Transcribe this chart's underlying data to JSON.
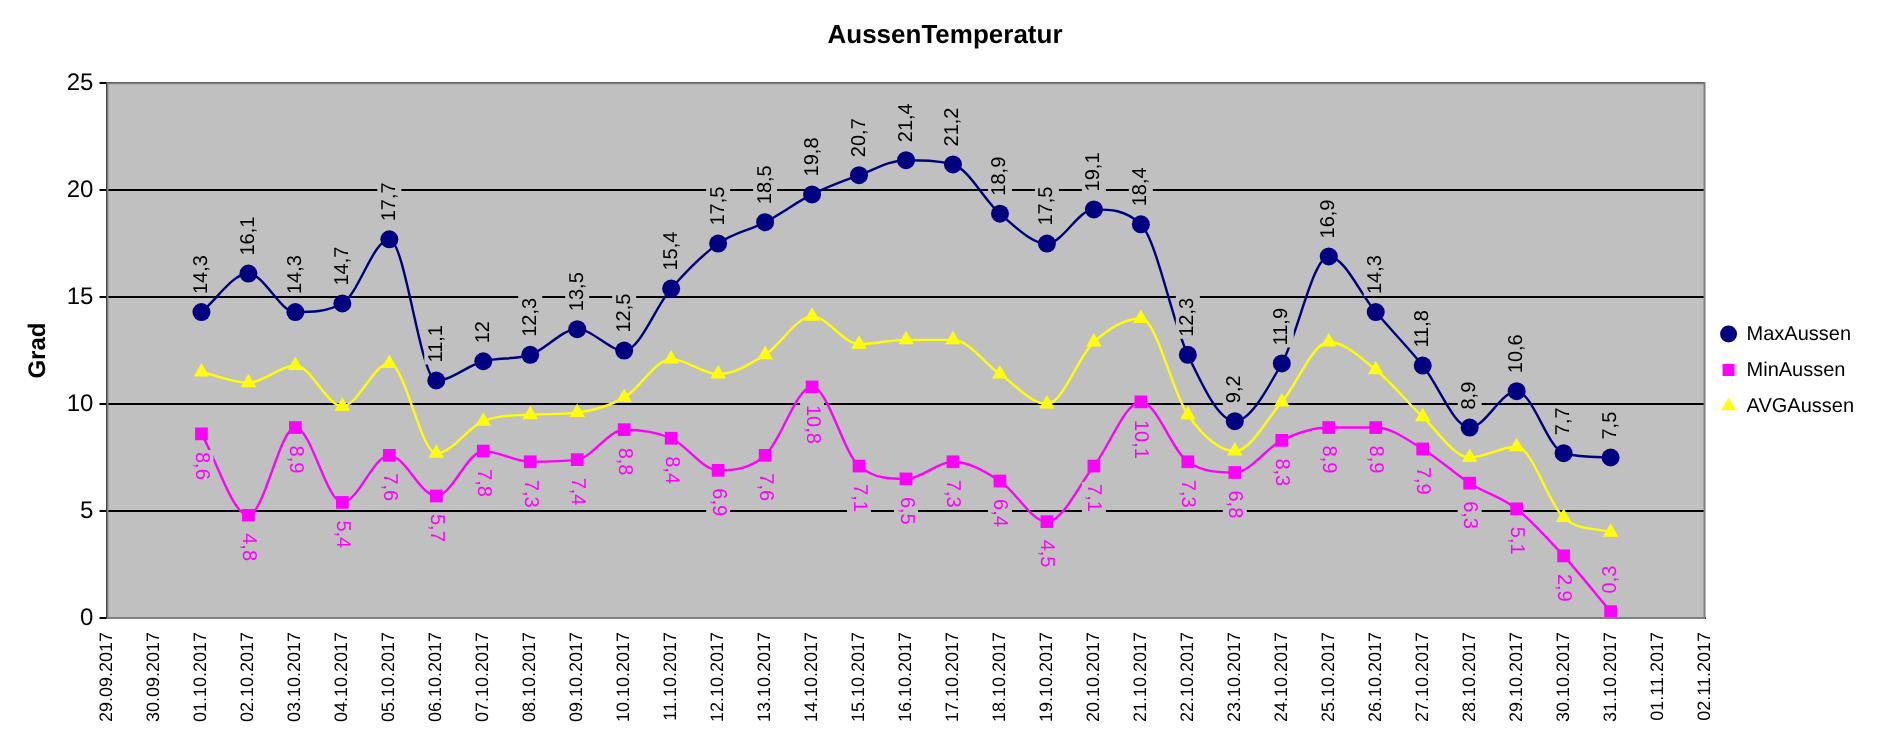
{
  "chart_data": {
    "type": "line",
    "title": "AussenTemperatur",
    "ylabel": "Grad",
    "x": [
      "2017-10-01",
      "2017-10-02",
      "2017-10-03",
      "2017-10-04",
      "2017-10-05",
      "2017-10-06",
      "2017-10-07",
      "2017-10-08",
      "2017-10-09",
      "2017-10-10",
      "2017-10-11",
      "2017-10-12",
      "2017-10-13",
      "2017-10-14",
      "2017-10-15",
      "2017-10-16",
      "2017-10-17",
      "2017-10-18",
      "2017-10-19",
      "2017-10-20",
      "2017-10-21",
      "2017-10-22",
      "2017-10-23",
      "2017-10-24",
      "2017-10-25",
      "2017-10-26",
      "2017-10-27",
      "2017-10-28",
      "2017-10-29",
      "2017-10-30",
      "2017-10-31"
    ],
    "series": [
      {
        "name": "MaxAussen",
        "color": "#000080",
        "marker": "circle",
        "values": [
          14.3,
          16.1,
          14.3,
          14.7,
          17.7,
          11.1,
          12,
          12.3,
          13.5,
          12.5,
          15.4,
          17.5,
          18.5,
          19.8,
          20.7,
          21.4,
          21.2,
          18.9,
          17.5,
          19.1,
          18.4,
          12.3,
          9.2,
          11.9,
          16.9,
          14.3,
          11.8,
          8.9,
          10.6,
          7.7,
          7.5
        ],
        "value_labels": [
          "14,3",
          "16,1",
          "14,3",
          "14,7",
          "17,7",
          "11,1",
          "12",
          "12,3",
          "13,5",
          "12,5",
          "15,4",
          "17,5",
          "18,5",
          "19,8",
          "20,7",
          "21,4",
          "21,2",
          "18,9",
          "17,5",
          "19,1",
          "18,4",
          "12,3",
          "9,2",
          "11,9",
          "16,9",
          "14,3",
          "11,8",
          "8,9",
          "10,6",
          "7,7",
          "7,5"
        ]
      },
      {
        "name": "MinAussen",
        "color": "#ff00ff",
        "marker": "square",
        "values": [
          8.6,
          4.8,
          8.9,
          5.4,
          7.6,
          5.7,
          7.8,
          7.3,
          7.4,
          8.8,
          8.4,
          6.9,
          7.6,
          10.8,
          7.1,
          6.5,
          7.3,
          6.4,
          4.5,
          7.1,
          10.1,
          7.3,
          6.8,
          8.3,
          8.9,
          8.9,
          7.9,
          6.3,
          5.1,
          2.9,
          0.3
        ],
        "value_labels": [
          "8,6",
          "4,8",
          "8,9",
          "5,4",
          "7,6",
          "5,7",
          "7,8",
          "7,3",
          "7,4",
          "8,8",
          "8,4",
          "6,9",
          "7,6",
          "10,8",
          "7,1",
          "6,5",
          "7,3",
          "6,4",
          "4,5",
          "7,1",
          "10,1",
          "7,3",
          "6,8",
          "8,3",
          "8,9",
          "8,9",
          "7,9",
          "6,3",
          "5,1",
          "2,9",
          "0,3"
        ]
      },
      {
        "name": "AVGAussen",
        "color": "#ffff00",
        "marker": "triangle",
        "values": [
          11.5,
          11.0,
          11.8,
          9.9,
          11.9,
          7.7,
          9.2,
          9.5,
          9.6,
          10.3,
          12.1,
          11.4,
          12.3,
          14.1,
          12.8,
          13.0,
          13.0,
          11.4,
          10.0,
          12.9,
          14.0,
          9.5,
          7.8,
          10.1,
          12.9,
          11.6,
          9.4,
          7.5,
          8.0,
          4.7,
          4.0
        ]
      }
    ],
    "xlim": [
      "2017-09-29",
      "2017-11-02"
    ],
    "xticks": [
      {
        "value": "2017-09-29",
        "label": "29.09.2017"
      },
      {
        "value": "2017-09-30",
        "label": "30.09.2017"
      },
      {
        "value": "2017-10-01",
        "label": "01.10.2017"
      },
      {
        "value": "2017-10-02",
        "label": "02.10.2017"
      },
      {
        "value": "2017-10-03",
        "label": "03.10.2017"
      },
      {
        "value": "2017-10-04",
        "label": "04.10.2017"
      },
      {
        "value": "2017-10-05",
        "label": "05.10.2017"
      },
      {
        "value": "2017-10-06",
        "label": "06.10.2017"
      },
      {
        "value": "2017-10-07",
        "label": "07.10.2017"
      },
      {
        "value": "2017-10-08",
        "label": "08.10.2017"
      },
      {
        "value": "2017-10-09",
        "label": "09.10.2017"
      },
      {
        "value": "2017-10-10",
        "label": "10.10.2017"
      },
      {
        "value": "2017-10-11",
        "label": "11.10.2017"
      },
      {
        "value": "2017-10-12",
        "label": "12.10.2017"
      },
      {
        "value": "2017-10-13",
        "label": "13.10.2017"
      },
      {
        "value": "2017-10-14",
        "label": "14.10.2017"
      },
      {
        "value": "2017-10-15",
        "label": "15.10.2017"
      },
      {
        "value": "2017-10-16",
        "label": "16.10.2017"
      },
      {
        "value": "2017-10-17",
        "label": "17.10.2017"
      },
      {
        "value": "2017-10-18",
        "label": "18.10.2017"
      },
      {
        "value": "2017-10-19",
        "label": "19.10.2017"
      },
      {
        "value": "2017-10-20",
        "label": "20.10.2017"
      },
      {
        "value": "2017-10-21",
        "label": "21.10.2017"
      },
      {
        "value": "2017-10-22",
        "label": "22.10.2017"
      },
      {
        "value": "2017-10-23",
        "label": "23.10.2017"
      },
      {
        "value": "2017-10-24",
        "label": "24.10.2017"
      },
      {
        "value": "2017-10-25",
        "label": "25.10.2017"
      },
      {
        "value": "2017-10-26",
        "label": "26.10.2017"
      },
      {
        "value": "2017-10-27",
        "label": "27.10.2017"
      },
      {
        "value": "2017-10-28",
        "label": "28.10.2017"
      },
      {
        "value": "2017-10-29",
        "label": "29.10.2017"
      },
      {
        "value": "2017-10-30",
        "label": "30.10.2017"
      },
      {
        "value": "2017-10-31",
        "label": "31.10.2017"
      },
      {
        "value": "2017-11-01",
        "label": "01.11.2017"
      },
      {
        "value": "2017-11-02",
        "label": "02.11.2017"
      }
    ],
    "ylim": [
      0,
      25
    ],
    "yticks": [
      0,
      5,
      10,
      15,
      20,
      25
    ],
    "grid": "y",
    "legend": "right",
    "line_style": "solid"
  }
}
